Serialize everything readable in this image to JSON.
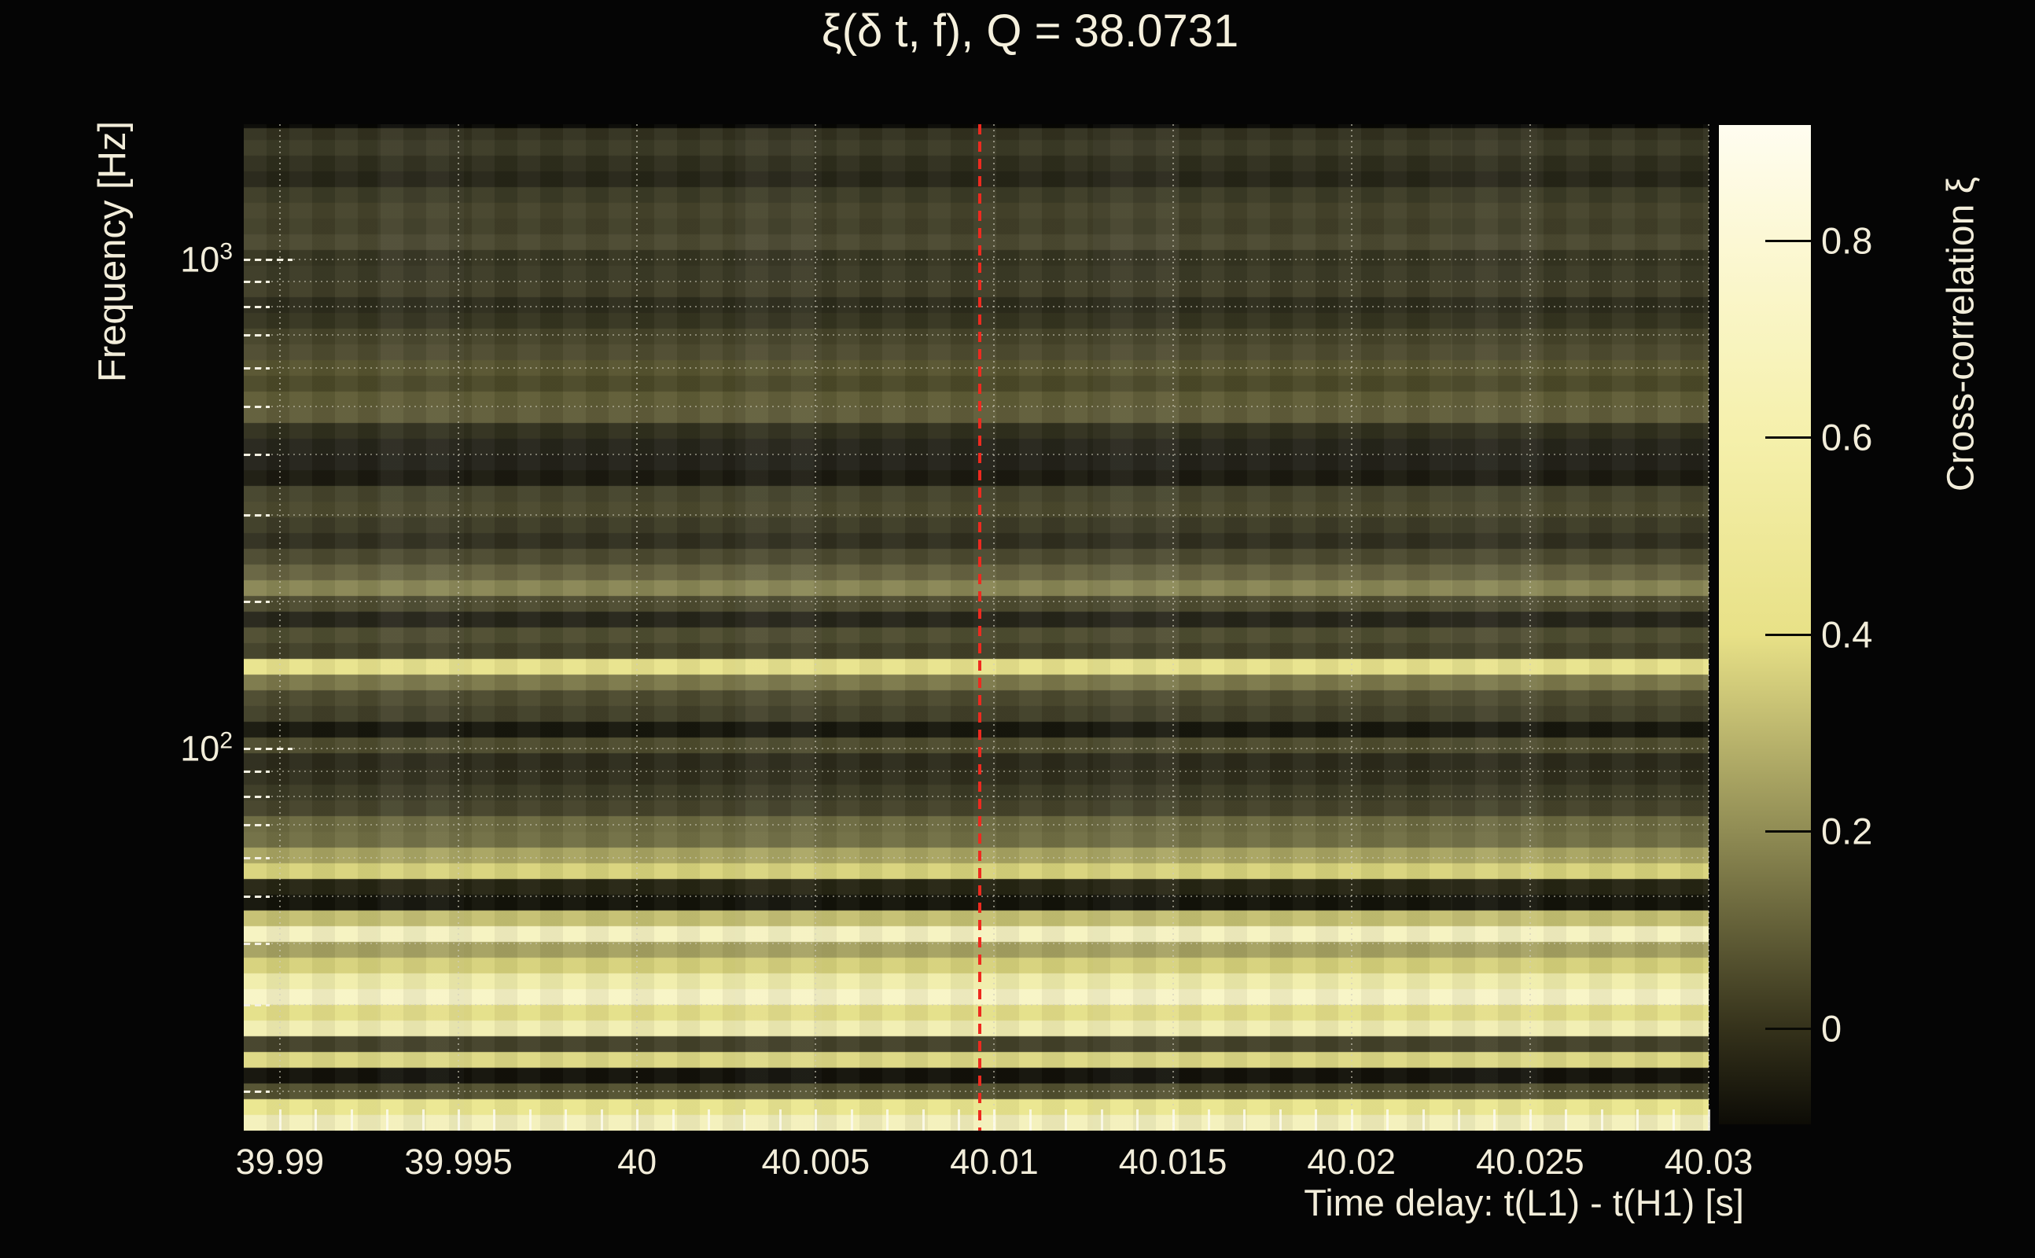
{
  "title": "ξ(δ t, f), Q = 38.0731",
  "colors": {
    "background": "#050505",
    "text": "#f2edda",
    "marker_line": "#ee2a1f",
    "grid_dots": "#d0cdbc",
    "tick_dash": "#f3f0e1",
    "colorbar_tick": "#0a0a05"
  },
  "chart_data": {
    "type": "heatmap",
    "title": "ξ(δ t, f), Q = 38.0731",
    "q_value": 38.0731,
    "xlabel": "Time delay: t(L1) - t(H1) [s]",
    "ylabel": "Frequency [Hz]",
    "colorbar_label": "Cross-correlation ξ",
    "xlim": [
      39.98899,
      40.03
    ],
    "ylim_hz": [
      16.6,
      1888
    ],
    "yscale": "log",
    "grid": true,
    "x_ticks": [
      {
        "value": 39.99,
        "label": "39.99"
      },
      {
        "value": 39.995,
        "label": "39.995"
      },
      {
        "value": 40.0,
        "label": "40"
      },
      {
        "value": 40.005,
        "label": "40.005"
      },
      {
        "value": 40.01,
        "label": "40.01"
      },
      {
        "value": 40.015,
        "label": "40.015"
      },
      {
        "value": 40.02,
        "label": "40.02"
      },
      {
        "value": 40.025,
        "label": "40.025"
      },
      {
        "value": 40.03,
        "label": "40.03"
      }
    ],
    "x_minor_tick_step": 0.001,
    "y_major_ticks": [
      {
        "value": 1000,
        "base": "10",
        "exp": "3"
      },
      {
        "value": 100,
        "base": "10",
        "exp": "2"
      }
    ],
    "y_minor_ticks": [
      900,
      800,
      700,
      600,
      500,
      400,
      300,
      200,
      90,
      80,
      70,
      60,
      50,
      40,
      30,
      20
    ],
    "marker_time": 40.0096,
    "colorbar": {
      "vmin": -0.0976,
      "vmax": 0.9174,
      "ticks": [
        {
          "value": 0.8,
          "label": "0.8"
        },
        {
          "value": 0.6,
          "label": "0.6"
        },
        {
          "value": 0.4,
          "label": "0.4"
        },
        {
          "value": 0.2,
          "label": "0.2"
        },
        {
          "value": 0.0,
          "label": "0"
        }
      ],
      "gradient": [
        {
          "frac": 0.0,
          "color": "#fffdf0"
        },
        {
          "frac": 0.116,
          "color": "#fcf8d4"
        },
        {
          "frac": 0.313,
          "color": "#f5f0ab"
        },
        {
          "frac": 0.51,
          "color": "#e8e187"
        },
        {
          "frac": 0.707,
          "color": "#908c54"
        },
        {
          "frac": 0.904,
          "color": "#35321b"
        },
        {
          "frac": 1.0,
          "color": "#0d0c06"
        }
      ]
    },
    "rows_note": "64 equal rows in log-frequency, top (≈1888 Hz) to bottom (≈16.6 Hz); color and approx ξ",
    "rows": [
      "#32311f",
      "#3b3a26",
      "#2f2e1d",
      "#262518",
      "#3c3b26",
      "#46442c",
      "#413f29",
      "#4b4931",
      "#353421",
      "#3b3a26",
      "#403e28",
      "#2d2c1c",
      "#353420",
      "#46442a",
      "#4e4b30",
      "#575430",
      "#4b4929",
      "#5f5c36",
      "#605d3a",
      "#31301e",
      "#26251b",
      "#23221a",
      "#1b1a10",
      "#45442c",
      "#4b492e",
      "#3d3c27",
      "#302f1f",
      "#4c4a30",
      "#676442",
      "#8a8756",
      "#4d4b30",
      "#26251a",
      "#4f4d31",
      "#413f28",
      "#e9e48e",
      "#7c794b",
      "#4c4a2f",
      "#413f29",
      "#17170d",
      "#4d4b2e",
      "#2c2b1b",
      "#302f1d",
      "#3b3a25",
      "#45432b",
      "#6c6a41",
      "#716f45",
      "#a9a562",
      "#d9d47d",
      "#262513",
      "#13130a",
      "#c6c173",
      "#f6f3c2",
      "#a6a262",
      "#d7d27c",
      "#f1eeac",
      "#f8f5c7",
      "#e5e08a",
      "#f2efb3",
      "#44422a",
      "#ded985",
      "#12110a",
      "#535130",
      "#ebe790",
      "#f4f1bc"
    ],
    "rows_xi_approx": [
      0.0,
      0.03,
      -0.01,
      -0.02,
      0.03,
      0.06,
      0.05,
      0.08,
      0.01,
      0.03,
      0.04,
      -0.01,
      0.01,
      0.06,
      0.08,
      0.1,
      0.07,
      0.12,
      0.11,
      -0.01,
      -0.03,
      -0.03,
      -0.05,
      0.06,
      0.08,
      0.03,
      0.0,
      0.08,
      0.14,
      0.19,
      0.08,
      -0.02,
      0.09,
      0.05,
      0.41,
      0.17,
      0.08,
      0.05,
      -0.06,
      0.08,
      -0.01,
      0.0,
      0.03,
      0.06,
      0.15,
      0.16,
      0.25,
      0.36,
      -0.02,
      -0.07,
      0.31,
      0.67,
      0.24,
      0.35,
      0.6,
      0.72,
      0.4,
      0.62,
      0.06,
      0.38,
      -0.07,
      0.1,
      0.43,
      0.65
    ]
  }
}
